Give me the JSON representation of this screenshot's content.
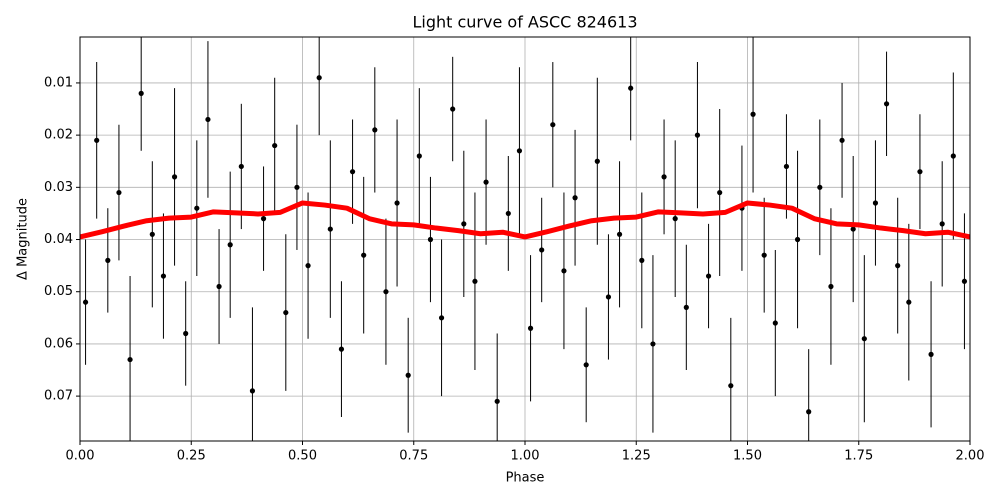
{
  "chart_data": {
    "type": "scatter",
    "title": "Light curve of ASCC 824613",
    "xlabel": "Phase",
    "ylabel": "Δ Magnitude",
    "xlim": [
      0,
      2
    ],
    "ylim": [
      0.0012,
      0.0786
    ],
    "invert_y": true,
    "grid": true,
    "xticks": [
      {
        "value": 0,
        "label": "0.00"
      },
      {
        "value": 0.25,
        "label": "0.25"
      },
      {
        "value": 0.5,
        "label": "0.50"
      },
      {
        "value": 0.75,
        "label": "0.75"
      },
      {
        "value": 1,
        "label": "1.00"
      },
      {
        "value": 1.25,
        "label": "1.25"
      },
      {
        "value": 1.5,
        "label": "1.50"
      },
      {
        "value": 1.75,
        "label": "1.75"
      },
      {
        "value": 2,
        "label": "2.00"
      }
    ],
    "yticks": [
      0.01,
      0.02,
      0.03,
      0.04,
      0.05,
      0.06,
      0.07
    ],
    "series": [
      {
        "type": "errorbar",
        "color": "#000000",
        "x": [
          0.0125,
          0.0375,
          0.0625,
          0.0875,
          0.1125,
          0.1375,
          0.1625,
          0.1875,
          0.2125,
          0.2375,
          0.2625,
          0.2875,
          0.3125,
          0.3375,
          0.3625,
          0.3875,
          0.4125,
          0.4375,
          0.4625,
          0.4875,
          0.5125,
          0.5375,
          0.5625,
          0.5875,
          0.6125,
          0.6375,
          0.6625,
          0.6875,
          0.7125,
          0.7375,
          0.7625,
          0.7875,
          0.8125,
          0.8375,
          0.8625,
          0.8875,
          0.9125,
          0.9375,
          0.9625,
          0.9875,
          1.0125,
          1.0375,
          1.0625,
          1.0875,
          1.1125,
          1.1375,
          1.1625,
          1.1875,
          1.2125,
          1.2375,
          1.2625,
          1.2875,
          1.3125,
          1.3375,
          1.3625,
          1.3875,
          1.4125,
          1.4375,
          1.4625,
          1.4875,
          1.5125,
          1.5375,
          1.5625,
          1.5875,
          1.6125,
          1.6375,
          1.6625,
          1.6875,
          1.7125,
          1.7375,
          1.7625,
          1.7875,
          1.8125,
          1.8375,
          1.8625,
          1.8875,
          1.9125,
          1.9375,
          1.9625,
          1.9875
        ],
        "values": [
          0.052,
          0.021,
          0.044,
          0.031,
          0.063,
          0.012,
          0.039,
          0.047,
          0.028,
          0.058,
          0.034,
          0.017,
          0.049,
          0.041,
          0.026,
          0.069,
          0.036,
          0.022,
          0.054,
          0.03,
          0.045,
          0.009,
          0.038,
          0.061,
          0.027,
          0.043,
          0.019,
          0.05,
          0.033,
          0.066,
          0.024,
          0.04,
          0.055,
          0.015,
          0.037,
          0.048,
          0.029,
          0.071,
          0.035,
          0.023,
          0.057,
          0.042,
          0.018,
          0.046,
          0.032,
          0.064,
          0.025,
          0.051,
          0.039,
          0.011,
          0.044,
          0.06,
          0.028,
          0.036,
          0.053,
          0.02,
          0.047,
          0.031,
          0.068,
          0.034,
          0.016,
          0.043,
          0.056,
          0.026,
          0.04,
          0.073,
          0.03,
          0.049,
          0.021,
          0.038,
          0.059,
          0.033,
          0.014,
          0.045,
          0.052,
          0.027,
          0.062,
          0.037,
          0.024,
          0.048
        ],
        "errors": [
          0.012,
          0.015,
          0.01,
          0.013,
          0.016,
          0.011,
          0.014,
          0.012,
          0.017,
          0.01,
          0.013,
          0.015,
          0.011,
          0.014,
          0.012,
          0.016,
          0.01,
          0.013,
          0.015,
          0.012,
          0.014,
          0.011,
          0.017,
          0.013,
          0.01,
          0.015,
          0.012,
          0.014,
          0.016,
          0.011,
          0.013,
          0.012,
          0.015,
          0.01,
          0.014,
          0.017,
          0.012,
          0.013,
          0.011,
          0.016,
          0.014,
          0.01,
          0.012,
          0.015,
          0.013,
          0.011,
          0.016,
          0.012,
          0.014,
          0.01,
          0.013,
          0.017,
          0.011,
          0.015,
          0.012,
          0.014,
          0.01,
          0.016,
          0.013,
          0.012,
          0.015,
          0.011,
          0.014,
          0.01,
          0.017,
          0.012,
          0.013,
          0.015,
          0.011,
          0.014,
          0.016,
          0.012,
          0.01,
          0.013,
          0.015,
          0.011,
          0.014,
          0.012,
          0.016,
          0.013
        ]
      },
      {
        "type": "line",
        "color": "#ff0000",
        "x": [
          0,
          0.05,
          0.1,
          0.15,
          0.2,
          0.25,
          0.3,
          0.35,
          0.4,
          0.45,
          0.5,
          0.55,
          0.6,
          0.65,
          0.7,
          0.75,
          0.8,
          0.85,
          0.9,
          0.95,
          1,
          1.05,
          1.1,
          1.15,
          1.2,
          1.25,
          1.3,
          1.35,
          1.4,
          1.45,
          1.5,
          1.55,
          1.6,
          1.65,
          1.7,
          1.75,
          1.8,
          1.85,
          1.9,
          1.95,
          2
        ],
        "values": [
          0.0395,
          0.0385,
          0.0374,
          0.0364,
          0.0359,
          0.0357,
          0.0347,
          0.0349,
          0.0351,
          0.0348,
          0.033,
          0.0334,
          0.034,
          0.036,
          0.037,
          0.0372,
          0.0378,
          0.0383,
          0.0389,
          0.0386,
          0.0395,
          0.0385,
          0.0374,
          0.0364,
          0.0359,
          0.0357,
          0.0347,
          0.0349,
          0.0351,
          0.0348,
          0.033,
          0.0334,
          0.034,
          0.036,
          0.037,
          0.0372,
          0.0378,
          0.0383,
          0.0389,
          0.0386,
          0.0395
        ]
      }
    ]
  }
}
